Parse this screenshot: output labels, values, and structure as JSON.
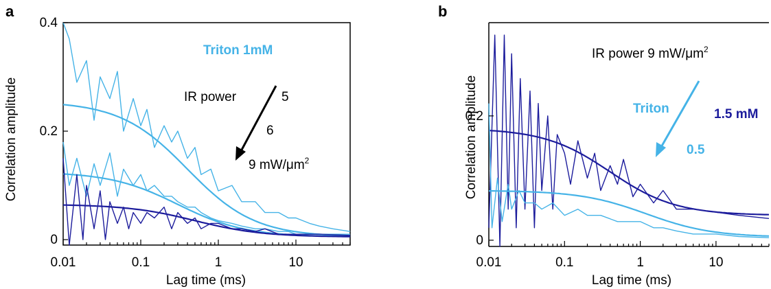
{
  "colors": {
    "light_blue": "#45b3e7",
    "dark_blue": "#1c1c9c",
    "black": "#000000"
  },
  "chart_data": [
    {
      "panel_label": "a",
      "type": "line",
      "xscale": "log",
      "xlabel": "Lag time (ms)",
      "ylabel": "Correlation amplitude",
      "xlim": [
        0.01,
        50
      ],
      "ylim": [
        -0.01,
        0.4
      ],
      "xticks": [
        0.01,
        0.1,
        1,
        10
      ],
      "xtick_labels": [
        "0.01",
        "0.1",
        "1",
        "10"
      ],
      "yticks": [
        0,
        0.2,
        0.4
      ],
      "ytick_labels": [
        "0",
        "0.2",
        "0.4"
      ],
      "grid": false,
      "annotations": {
        "top": "Triton 1mM",
        "ir_label": "IR power",
        "values": [
          "5",
          "6",
          "9 mW/μm"
        ],
        "superscript": "2",
        "arrow": "black diagonal arrow pointing down-left"
      },
      "series": [
        {
          "color": "#45b3e7",
          "fit": {
            "G0": 0.25,
            "tau": 0.4,
            "offset": 0.005
          },
          "data_x": [
            0.01,
            0.012,
            0.015,
            0.02,
            0.025,
            0.03,
            0.04,
            0.05,
            0.06,
            0.08,
            0.1,
            0.12,
            0.15,
            0.2,
            0.25,
            0.3,
            0.4,
            0.5,
            0.6,
            0.8,
            1.0,
            1.5,
            2.0,
            3.0,
            4.0,
            6.0,
            8.0,
            10,
            15,
            20,
            30,
            50
          ],
          "data_y": [
            0.4,
            0.37,
            0.29,
            0.33,
            0.22,
            0.3,
            0.26,
            0.31,
            0.2,
            0.26,
            0.21,
            0.24,
            0.17,
            0.21,
            0.18,
            0.2,
            0.15,
            0.17,
            0.12,
            0.13,
            0.09,
            0.1,
            0.07,
            0.07,
            0.05,
            0.05,
            0.04,
            0.04,
            0.03,
            0.025,
            0.02,
            0.015
          ]
        },
        {
          "color": "#45b3e7",
          "fit": {
            "G0": 0.12,
            "tau": 0.3,
            "offset": 0.005
          },
          "data_x": [
            0.01,
            0.012,
            0.015,
            0.02,
            0.025,
            0.03,
            0.04,
            0.05,
            0.06,
            0.08,
            0.1,
            0.12,
            0.15,
            0.2,
            0.25,
            0.3,
            0.4,
            0.5,
            0.6,
            0.8,
            1.0,
            1.5,
            2.0,
            3.0,
            4.0,
            6.0,
            8.0,
            10,
            15,
            20,
            30,
            50
          ],
          "data_y": [
            0.18,
            0.1,
            0.15,
            0.08,
            0.14,
            0.1,
            0.16,
            0.08,
            0.13,
            0.1,
            0.12,
            0.09,
            0.1,
            0.08,
            0.08,
            0.07,
            0.06,
            0.06,
            0.05,
            0.04,
            0.035,
            0.03,
            0.025,
            0.02,
            0.02,
            0.015,
            0.015,
            0.01,
            0.01,
            0.01,
            0.01,
            0.01
          ]
        },
        {
          "color": "#1c1c9c",
          "fit": {
            "G0": 0.06,
            "tau": 0.5,
            "offset": 0.005
          },
          "data_x": [
            0.01,
            0.012,
            0.015,
            0.018,
            0.02,
            0.025,
            0.03,
            0.035,
            0.04,
            0.05,
            0.06,
            0.07,
            0.08,
            0.1,
            0.12,
            0.15,
            0.2,
            0.25,
            0.3,
            0.4,
            0.5,
            0.6,
            0.8,
            1.0,
            1.5,
            2.0,
            3.0,
            4.0,
            6.0,
            10,
            20,
            50
          ],
          "data_y": [
            0.15,
            -0.01,
            0.12,
            0.0,
            0.1,
            0.02,
            0.09,
            0.0,
            0.07,
            0.03,
            0.06,
            0.02,
            0.05,
            0.03,
            0.05,
            0.04,
            0.06,
            0.02,
            0.05,
            0.03,
            0.04,
            0.02,
            0.03,
            0.03,
            0.02,
            0.02,
            0.015,
            0.02,
            0.01,
            0.01,
            0.01,
            0.008
          ]
        }
      ]
    },
    {
      "panel_label": "b",
      "type": "line",
      "xscale": "log",
      "xlabel": "Lag time (ms)",
      "ylabel": "Correlation amplitude",
      "xlim": [
        0.01,
        50
      ],
      "ylim": [
        -0.01,
        0.35
      ],
      "xticks": [
        0.01,
        0.1,
        1,
        10
      ],
      "xtick_labels": [
        "0.01",
        "0.1",
        "1",
        "10"
      ],
      "yticks": [
        0,
        0.2
      ],
      "ytick_labels": [
        "0",
        "0.2"
      ],
      "grid": false,
      "annotations": {
        "top": "IR power 9 mW/μm",
        "superscript": "2",
        "triton": "Triton",
        "dark_label": "1.5 mM",
        "light_label": "0.5",
        "arrow": "light blue diagonal arrow pointing down-left"
      },
      "series": [
        {
          "color": "#1c1c9c",
          "fit": {
            "G0": 0.14,
            "tau": 0.4,
            "offset": 0.04
          },
          "data_x": [
            0.01,
            0.012,
            0.014,
            0.016,
            0.018,
            0.02,
            0.023,
            0.026,
            0.03,
            0.035,
            0.04,
            0.045,
            0.05,
            0.06,
            0.07,
            0.08,
            0.1,
            0.12,
            0.15,
            0.2,
            0.25,
            0.3,
            0.4,
            0.5,
            0.6,
            0.8,
            1.0,
            1.5,
            2.0,
            3.0,
            5.0,
            10,
            20,
            50
          ],
          "data_y": [
            0.02,
            0.33,
            -0.01,
            0.33,
            0.05,
            0.3,
            0.02,
            0.26,
            0.05,
            0.24,
            0.02,
            0.22,
            0.08,
            0.2,
            0.05,
            0.17,
            0.14,
            0.09,
            0.16,
            0.1,
            0.14,
            0.08,
            0.12,
            0.09,
            0.13,
            0.07,
            0.09,
            0.06,
            0.08,
            0.05,
            0.05,
            0.045,
            0.04,
            0.035
          ]
        },
        {
          "color": "#45b3e7",
          "fit": {
            "G0": 0.075,
            "tau": 1.2,
            "offset": 0.005
          },
          "data_x": [
            0.01,
            0.011,
            0.013,
            0.015,
            0.018,
            0.02,
            0.025,
            0.03,
            0.04,
            0.05,
            0.07,
            0.1,
            0.15,
            0.2,
            0.3,
            0.5,
            0.7,
            1.0,
            1.5,
            2.0,
            3.0,
            5.0,
            10,
            20,
            50
          ],
          "data_y": [
            0.22,
            0.02,
            0.1,
            0.03,
            0.09,
            0.05,
            0.08,
            0.06,
            0.06,
            0.05,
            0.06,
            0.04,
            0.05,
            0.04,
            0.04,
            0.03,
            0.03,
            0.03,
            0.02,
            0.02,
            0.015,
            0.01,
            0.01,
            0.006,
            0.004
          ]
        }
      ]
    }
  ]
}
